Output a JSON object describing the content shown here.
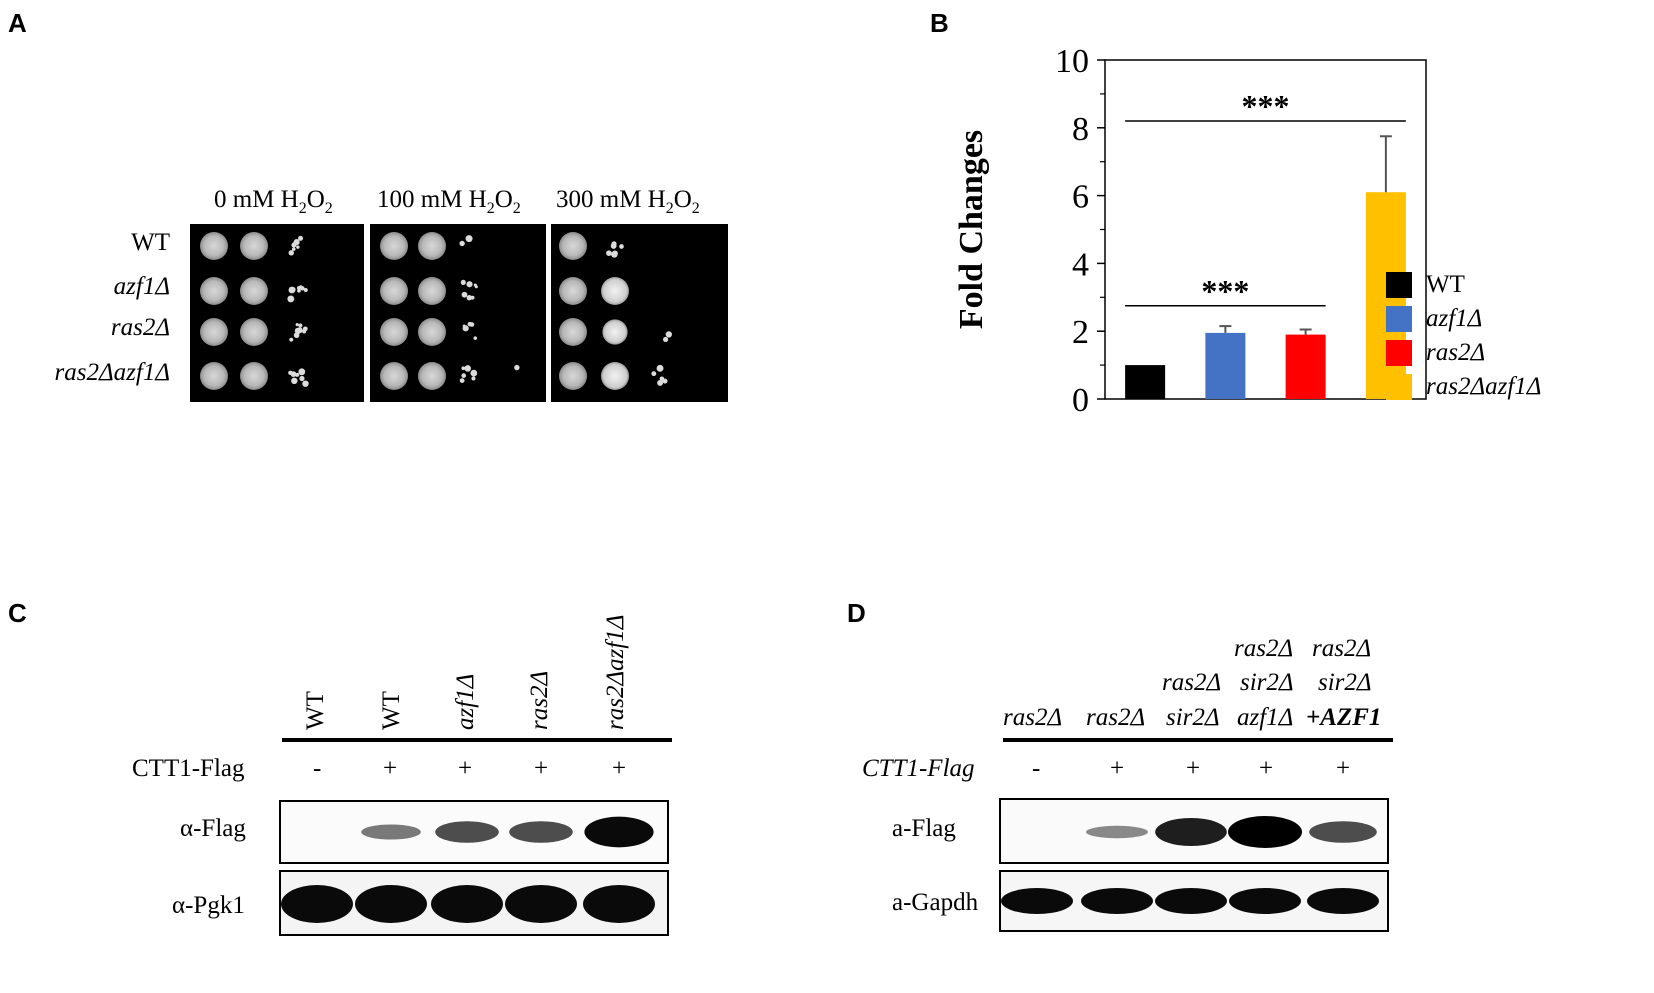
{
  "panel_labels": {
    "a": "A",
    "b": "B",
    "c": "C",
    "d": "D"
  },
  "panel_a": {
    "condition_headers": [
      {
        "pre": "0 mM H",
        "sub1": "2",
        "mid": "O",
        "sub2": "2"
      },
      {
        "pre": "100 mM H",
        "sub1": "2",
        "mid": "O",
        "sub2": "2"
      },
      {
        "pre": "300 mM H",
        "sub1": "2",
        "mid": "O",
        "sub2": "2"
      }
    ],
    "strains": [
      "WT",
      "azf1Δ",
      "ras2Δ",
      "ras2Δazf1Δ"
    ]
  },
  "chart_data": {
    "type": "bar",
    "ylabel": "Fold Changes",
    "ylim": [
      0,
      10
    ],
    "yticks": [
      "0",
      "2",
      "4",
      "6",
      "8",
      "10"
    ],
    "categories": [
      "WT",
      "azf1Δ",
      "ras2Δ",
      "ras2Δazf1Δ"
    ],
    "values": [
      1.0,
      1.95,
      1.9,
      6.1
    ],
    "errors": [
      0.0,
      0.2,
      0.15,
      1.65
    ],
    "colors": [
      "#000000",
      "#4472c4",
      "#ff0000",
      "#ffc000"
    ],
    "legend_position": "right",
    "significance": [
      {
        "label": "***",
        "from": 0,
        "to": 3
      },
      {
        "label": "***",
        "from": 0,
        "to": 2
      }
    ]
  },
  "panel_c": {
    "lanes": [
      "WT",
      "WT",
      "azf1Δ",
      "ras2Δ",
      "ras2Δazf1Δ"
    ],
    "construct_label": "CTT1-Flag",
    "construct_marks": [
      "-",
      "+",
      "+",
      "+",
      "+"
    ],
    "blots": [
      "α-Flag",
      "α-Pgk1"
    ],
    "flag_intensity": [
      0.0,
      0.35,
      0.6,
      0.6,
      0.95
    ]
  },
  "panel_d": {
    "lanes": [
      [
        "ras2Δ"
      ],
      [
        "ras2Δ"
      ],
      [
        "ras2Δ",
        "sir2Δ"
      ],
      [
        "ras2Δ",
        "sir2Δ",
        "azf1Δ"
      ],
      [
        "ras2Δ",
        "sir2Δ",
        "+AZF1"
      ]
    ],
    "construct_label": "CTT1-Flag",
    "construct_marks": [
      "-",
      "+",
      "+",
      "+",
      "+"
    ],
    "blots": [
      "a-Flag",
      "a-Gapdh"
    ],
    "flag_intensity": [
      0.0,
      0.25,
      0.85,
      1.0,
      0.6
    ]
  }
}
